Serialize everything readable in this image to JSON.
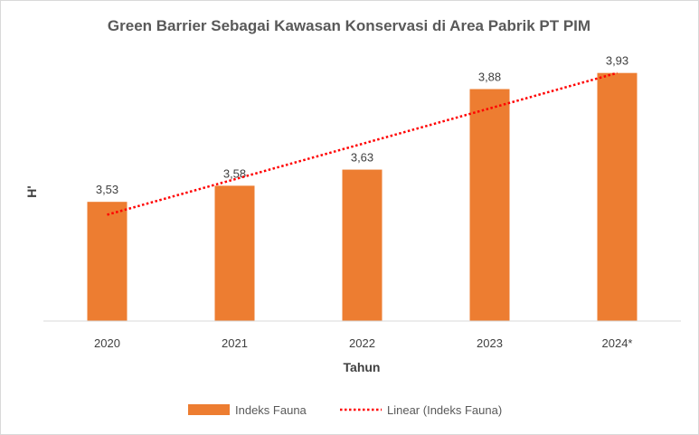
{
  "chart_data": {
    "type": "bar",
    "title": "Green Barrier Sebagai Kawasan Konservasi di Area Pabrik PT PIM",
    "xlabel": "Tahun",
    "ylabel": "H'",
    "categories": [
      "2020",
      "2021",
      "2022",
      "2023",
      "2024*"
    ],
    "series": [
      {
        "name": "Indeks Fauna",
        "values": [
          3.53,
          3.58,
          3.63,
          3.88,
          3.93
        ],
        "color": "#ED7D31"
      }
    ],
    "data_labels": [
      "3,53",
      "3,58",
      "3,63",
      "3,88",
      "3,93"
    ],
    "trendline": {
      "name": "Linear (Indeks Fauna)",
      "type": "linear",
      "color": "#FF0000",
      "style": "dotted"
    },
    "ylim": [
      3.16,
      3.96
    ],
    "grid": false,
    "legend_position": "bottom"
  }
}
